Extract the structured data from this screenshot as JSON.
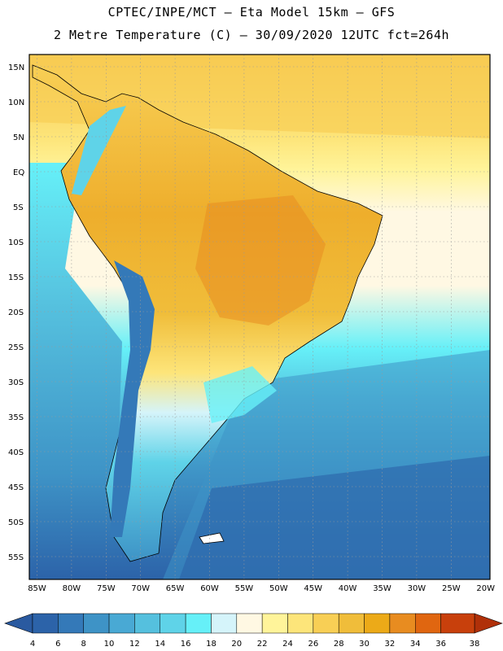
{
  "header": {
    "title_line1": "CPTEC/INPE/MCT –  Eta Model 15km – GFS",
    "title_line2": "2 Metre Temperature (C) – 30/09/2020 12UTC fct=264h"
  },
  "axes": {
    "lat_labels": [
      "15N",
      "10N",
      "5N",
      "EQ",
      "5S",
      "10S",
      "15S",
      "20S",
      "25S",
      "30S",
      "35S",
      "40S",
      "45S",
      "50S",
      "55S"
    ],
    "lon_labels": [
      "85W",
      "80W",
      "75W",
      "70W",
      "65W",
      "60W",
      "55W",
      "50W",
      "45W",
      "40W",
      "35W",
      "30W",
      "25W",
      "20W"
    ]
  },
  "legend": {
    "values": [
      "4",
      "6",
      "8",
      "10",
      "12",
      "14",
      "16",
      "18",
      "20",
      "22",
      "24",
      "26",
      "28",
      "30",
      "32",
      "34",
      "36",
      "38"
    ],
    "colors": [
      "#2c63a9",
      "#3479b8",
      "#3e93c6",
      "#49a9d4",
      "#55c0de",
      "#5fd3e8",
      "#66f0f8",
      "#d5f4fa",
      "#fff8e3",
      "#fff49a",
      "#fde57a",
      "#f8cf55",
      "#f0bd3a",
      "#ecaa18",
      "#e88c20",
      "#e06610",
      "#c8400c"
    ],
    "low_color": "#2a5aa0",
    "high_color": "#b03009"
  }
}
